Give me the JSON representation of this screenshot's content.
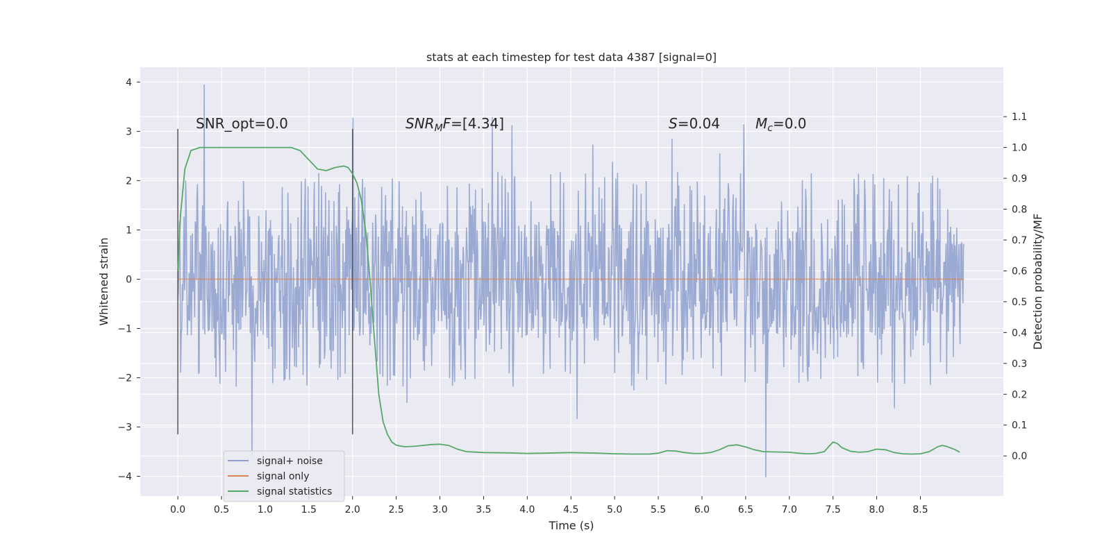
{
  "chart_data": {
    "type": "line",
    "title": "stats at each timestep for test data 4387 [signal=0]",
    "xlabel": "Time (s)",
    "ylabel": "Whitened strain",
    "y2label": "Detection probability/MF",
    "xlim": [
      -0.43,
      9.45
    ],
    "ylim": [
      -4.4,
      4.3
    ],
    "y2lim": [
      -0.13,
      1.26
    ],
    "x_ticks": [
      "0.0",
      "0.5",
      "1.0",
      "1.5",
      "2.0",
      "2.5",
      "3.0",
      "3.5",
      "4.0",
      "4.5",
      "5.0",
      "5.5",
      "6.0",
      "6.5",
      "7.0",
      "7.5",
      "8.0",
      "8.5"
    ],
    "y_ticks": [
      "4",
      "3",
      "2",
      "1",
      "0",
      "−1",
      "−2",
      "−3",
      "−4"
    ],
    "y2_ticks": [
      "1.1",
      "1.0",
      "0.9",
      "0.8",
      "0.7",
      "0.6",
      "0.5",
      "0.4",
      "0.3",
      "0.2",
      "0.1",
      "0.0"
    ],
    "vlines": [
      0.0,
      2.0
    ],
    "vline_range": [
      -3.15,
      3.05
    ],
    "noise": {
      "duration": 9.0,
      "band": 1.2,
      "typical_peak": 2.2,
      "max": 3.95,
      "min": -4.02
    },
    "signal_only": {
      "x": [
        0.0,
        9.0
      ],
      "y": [
        0.0,
        0.0
      ]
    },
    "series": [
      {
        "name": "signal statistics",
        "x": [
          0.0,
          0.03,
          0.08,
          0.15,
          0.25,
          0.4,
          0.6,
          0.8,
          1.0,
          1.2,
          1.3,
          1.4,
          1.5,
          1.6,
          1.7,
          1.8,
          1.9,
          1.95,
          2.0,
          2.05,
          2.1,
          2.15,
          2.2,
          2.25,
          2.3,
          2.35,
          2.4,
          2.45,
          2.5,
          2.55,
          2.6,
          2.7,
          2.8,
          2.9,
          3.0,
          3.1,
          3.2,
          3.3,
          3.5,
          3.8,
          4.0,
          4.2,
          4.5,
          4.8,
          5.0,
          5.2,
          5.4,
          5.5,
          5.6,
          5.7,
          5.8,
          5.9,
          6.0,
          6.1,
          6.2,
          6.3,
          6.4,
          6.5,
          6.6,
          6.7,
          6.8,
          7.0,
          7.1,
          7.2,
          7.3,
          7.4,
          7.45,
          7.5,
          7.55,
          7.6,
          7.7,
          7.8,
          7.9,
          8.0,
          8.1,
          8.2,
          8.3,
          8.4,
          8.5,
          8.6,
          8.7,
          8.75,
          8.8,
          8.9,
          8.95
        ],
        "y": [
          0.6,
          0.78,
          0.93,
          0.99,
          1.0,
          1.0,
          1.0,
          1.0,
          1.0,
          1.0,
          1.0,
          0.99,
          0.96,
          0.93,
          0.925,
          0.935,
          0.94,
          0.935,
          0.915,
          0.885,
          0.83,
          0.73,
          0.57,
          0.38,
          0.2,
          0.11,
          0.07,
          0.045,
          0.035,
          0.032,
          0.03,
          0.031,
          0.034,
          0.037,
          0.038,
          0.034,
          0.022,
          0.014,
          0.011,
          0.01,
          0.008,
          0.009,
          0.011,
          0.009,
          0.007,
          0.006,
          0.006,
          0.009,
          0.017,
          0.016,
          0.011,
          0.008,
          0.008,
          0.011,
          0.02,
          0.033,
          0.036,
          0.029,
          0.02,
          0.014,
          0.013,
          0.012,
          0.009,
          0.007,
          0.008,
          0.014,
          0.03,
          0.045,
          0.04,
          0.027,
          0.015,
          0.012,
          0.014,
          0.022,
          0.02,
          0.011,
          0.007,
          0.006,
          0.007,
          0.014,
          0.03,
          0.034,
          0.031,
          0.02,
          0.012
        ],
        "color": "#55a868"
      }
    ],
    "annotations": [
      {
        "x": 0.2,
        "y": 3.13,
        "text": "SNR_opt=0.0"
      },
      {
        "x": 2.6,
        "y": 3.13,
        "text": "=[4.34]",
        "math": "SNR_MF"
      },
      {
        "x": 5.6,
        "y": 3.13,
        "text": "=0.04",
        "math": "S"
      },
      {
        "x": 6.6,
        "y": 3.13,
        "text": "=0.0",
        "math": "M_c"
      }
    ],
    "legend": {
      "position": "lower-left",
      "entries": [
        {
          "label": "signal+ noise",
          "color": "#8c9fcc"
        },
        {
          "label": "signal only",
          "color": "#dd8452"
        },
        {
          "label": "signal statistics",
          "color": "#55a868"
        }
      ]
    },
    "colors": {
      "background": "#eaeaf2",
      "grid": "#ffffff",
      "noise": "#8c9fcc",
      "signal": "#dd8452",
      "stats": "#55a868",
      "vline": "#555555"
    }
  }
}
